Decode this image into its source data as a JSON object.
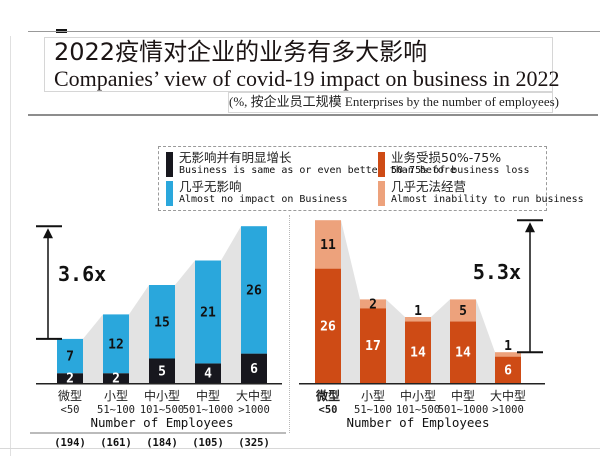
{
  "header": {
    "title_zh": "2022疫情对企业的业务有多大影响",
    "title_en": "Companies’ view of covid-19 impact on business in 2022",
    "subtitle": "(%, 按企业员工规模 Enterprises by the number of employees)"
  },
  "legend": {
    "items": [
      {
        "name": "no-impact-or-growth",
        "color": "#17171e",
        "zh": "无影响并有明显增长",
        "en": "Business is same as or even better than before"
      },
      {
        "name": "business-loss-50-75",
        "color": "#ce4b15",
        "zh": "业务受损50%-75%",
        "en": "50-75% of business loss"
      },
      {
        "name": "almost-no-impact",
        "color": "#2aa7dc",
        "zh": "几乎无影响",
        "en": "Almost no impact on Business"
      },
      {
        "name": "almost-unable-to-run",
        "color": "#eda27c",
        "zh": "几乎无法经营",
        "en": "Almost inability to run business"
      }
    ]
  },
  "chart_data": [
    {
      "type": "bar",
      "stacked": true,
      "categories": [
        "微型",
        "小型",
        "中小型",
        "中型",
        "大中型"
      ],
      "category_ranges": [
        "<50",
        "51~100",
        "101~500",
        "501~1000",
        ">1000"
      ],
      "xlabel": "Number of Employees",
      "series": [
        {
          "name": "无影响并有明显增长 Business is same as or even better than before",
          "color": "#17171e",
          "label_color": "#ffffff",
          "values": [
            2,
            2,
            5,
            4,
            6
          ]
        },
        {
          "name": "几乎无影响 Almost no impact on Business",
          "color": "#2aa7dc",
          "label_color": "#111111",
          "values": [
            7,
            12,
            15,
            21,
            26
          ]
        }
      ],
      "totals": [
        9,
        14,
        20,
        25,
        32
      ],
      "ratio_annotation": "3.6x",
      "sample_sizes": [
        "(194)",
        "(161)",
        "(184)",
        "(105)",
        "(325)"
      ],
      "connector_color": "#e3e3e3",
      "ylim": [
        0,
        35
      ],
      "legend_position": "top-shared",
      "highlight_first_category": false
    },
    {
      "type": "bar",
      "stacked": true,
      "categories": [
        "微型",
        "小型",
        "中小型",
        "中型",
        "大中型"
      ],
      "category_ranges": [
        "<50",
        "51~100",
        "101~500",
        "501~1000",
        ">1000"
      ],
      "xlabel": "Number of Employees",
      "series": [
        {
          "name": "业务受损50%-75% 50-75% of business loss",
          "color": "#ce4b15",
          "label_color": "#ffffff",
          "values": [
            26,
            17,
            14,
            14,
            6
          ]
        },
        {
          "name": "几乎无法经营 Almost inability to run business",
          "color": "#eda27c",
          "label_color": "#111111",
          "values": [
            11,
            2,
            1,
            5,
            1
          ]
        }
      ],
      "totals": [
        37,
        19,
        15,
        19,
        7
      ],
      "ratio_annotation": "5.3x",
      "connector_color": "#e3e3e3",
      "ylim": [
        0,
        40
      ],
      "legend_position": "top-shared",
      "highlight_first_category": true
    }
  ]
}
